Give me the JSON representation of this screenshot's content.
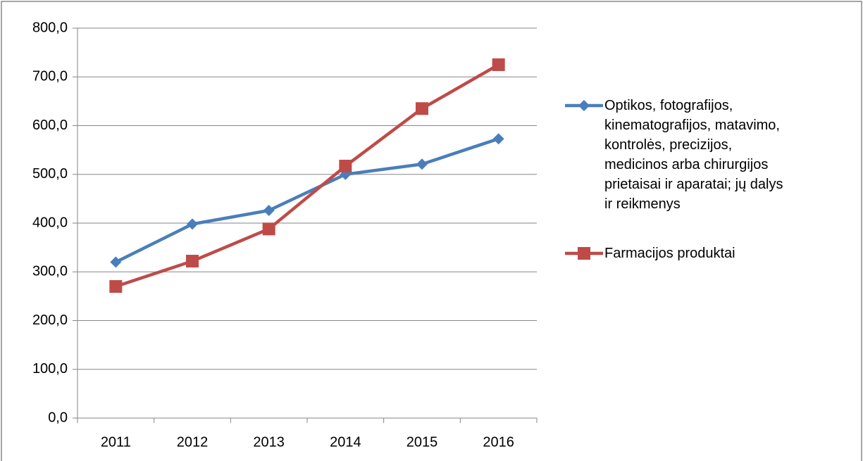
{
  "chart_data": {
    "type": "line",
    "categories": [
      "2011",
      "2012",
      "2013",
      "2014",
      "2015",
      "2016"
    ],
    "series": [
      {
        "name": "Optikos, fotografijos, kinematografijos, matavimo, kontrolės, precizijos, medicinos arba chirurgijos prietaisai ir aparatai; jų dalys ir reikmenys",
        "color": "#4a7ebb",
        "marker": "diamond",
        "values": [
          320,
          398,
          426,
          500,
          521,
          573
        ]
      },
      {
        "name": "Farmacijos produktai",
        "color": "#be4b48",
        "marker": "square",
        "values": [
          270,
          322,
          388,
          517,
          635,
          725
        ]
      }
    ],
    "ylim": [
      0,
      800
    ],
    "yticks": [
      {
        "value": 0,
        "label": "0,0"
      },
      {
        "value": 100,
        "label": "100,0"
      },
      {
        "value": 200,
        "label": "200,0"
      },
      {
        "value": 300,
        "label": "300,0"
      },
      {
        "value": 400,
        "label": "400,0"
      },
      {
        "value": 500,
        "label": "500,0"
      },
      {
        "value": 600,
        "label": "600,0"
      },
      {
        "value": 700,
        "label": "700,0"
      },
      {
        "value": 800,
        "label": "800,0"
      }
    ],
    "grid": true,
    "legend": "right"
  }
}
